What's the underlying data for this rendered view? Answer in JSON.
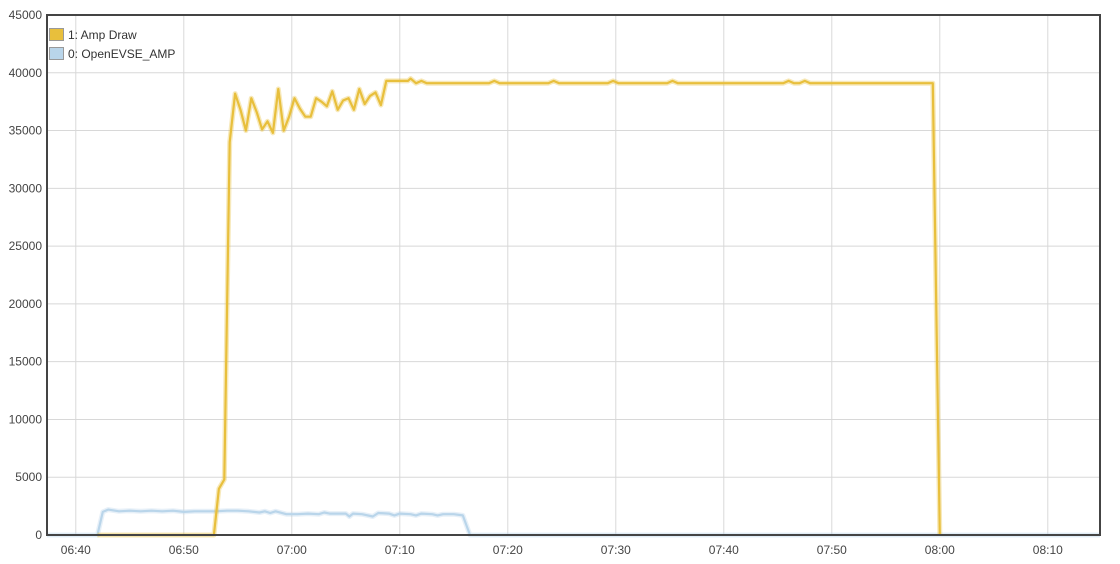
{
  "chart_data": {
    "type": "line",
    "title": "",
    "xlabel": "",
    "ylabel": "",
    "xlim": [
      "06:37:20",
      "08:14:50"
    ],
    "ylim": [
      0,
      45000
    ],
    "grid": true,
    "legend_position": "top-left",
    "x_ticks": [
      "06:40",
      "06:50",
      "07:00",
      "07:10",
      "07:20",
      "07:30",
      "07:40",
      "07:50",
      "08:00",
      "08:10"
    ],
    "y_ticks": [
      "0",
      "5000",
      "10000",
      "15000",
      "20000",
      "25000",
      "30000",
      "35000",
      "40000",
      "45000"
    ],
    "series": [
      {
        "name": "0: OpenEVSE_AMP",
        "color": "#b9d5ea",
        "points": [
          [
            "06:37:20",
            0
          ],
          [
            "06:42:00",
            0
          ],
          [
            "06:42:30",
            2000
          ],
          [
            "06:43:00",
            2200
          ],
          [
            "06:44:00",
            2050
          ],
          [
            "06:45:00",
            2100
          ],
          [
            "06:46:00",
            2050
          ],
          [
            "06:47:00",
            2100
          ],
          [
            "06:48:00",
            2050
          ],
          [
            "06:49:00",
            2100
          ],
          [
            "06:50:00",
            2000
          ],
          [
            "06:51:00",
            2050
          ],
          [
            "06:52:00",
            2050
          ],
          [
            "06:53:00",
            2050
          ],
          [
            "06:54:00",
            2100
          ],
          [
            "06:55:00",
            2100
          ],
          [
            "06:56:00",
            2050
          ],
          [
            "06:57:00",
            1950
          ],
          [
            "06:57:30",
            2050
          ],
          [
            "06:58:00",
            1900
          ],
          [
            "06:58:30",
            2050
          ],
          [
            "06:59:30",
            1800
          ],
          [
            "07:00:30",
            1800
          ],
          [
            "07:01:30",
            1850
          ],
          [
            "07:02:30",
            1800
          ],
          [
            "07:03:00",
            1950
          ],
          [
            "07:03:30",
            1850
          ],
          [
            "07:04:00",
            1850
          ],
          [
            "07:05:00",
            1850
          ],
          [
            "07:05:20",
            1600
          ],
          [
            "07:05:40",
            1850
          ],
          [
            "07:06:30",
            1800
          ],
          [
            "07:07:30",
            1600
          ],
          [
            "07:08:00",
            1900
          ],
          [
            "07:09:00",
            1850
          ],
          [
            "07:09:30",
            1700
          ],
          [
            "07:10:00",
            1850
          ],
          [
            "07:11:00",
            1800
          ],
          [
            "07:11:30",
            1700
          ],
          [
            "07:12:00",
            1850
          ],
          [
            "07:13:00",
            1800
          ],
          [
            "07:13:30",
            1700
          ],
          [
            "07:14:00",
            1800
          ],
          [
            "07:15:00",
            1800
          ],
          [
            "07:15:50",
            1700
          ],
          [
            "07:16:30",
            0
          ],
          [
            "08:14:50",
            0
          ]
        ]
      },
      {
        "name": "1: Amp Draw",
        "color": "#e8bf3c",
        "points": [
          [
            "06:42:00",
            0
          ],
          [
            "06:52:47",
            0
          ],
          [
            "06:53:15",
            4000
          ],
          [
            "06:53:45",
            4800
          ],
          [
            "06:54:15",
            34000
          ],
          [
            "06:54:45",
            38200
          ],
          [
            "06:55:15",
            36800
          ],
          [
            "06:55:45",
            35000
          ],
          [
            "06:56:15",
            37800
          ],
          [
            "06:56:45",
            36600
          ],
          [
            "06:57:15",
            35100
          ],
          [
            "06:57:45",
            35800
          ],
          [
            "06:58:15",
            34800
          ],
          [
            "06:58:45",
            38600
          ],
          [
            "06:59:15",
            35000
          ],
          [
            "06:59:45",
            36200
          ],
          [
            "07:00:15",
            37800
          ],
          [
            "07:00:45",
            36900
          ],
          [
            "07:01:15",
            36200
          ],
          [
            "07:01:45",
            36200
          ],
          [
            "07:02:15",
            37800
          ],
          [
            "07:02:45",
            37500
          ],
          [
            "07:03:15",
            37100
          ],
          [
            "07:03:45",
            38400
          ],
          [
            "07:04:15",
            36800
          ],
          [
            "07:04:45",
            37600
          ],
          [
            "07:05:15",
            37800
          ],
          [
            "07:05:45",
            36800
          ],
          [
            "07:06:15",
            38600
          ],
          [
            "07:06:45",
            37300
          ],
          [
            "07:07:15",
            38000
          ],
          [
            "07:07:45",
            38300
          ],
          [
            "07:08:15",
            37200
          ],
          [
            "07:08:45",
            39300
          ],
          [
            "07:10:45",
            39300
          ],
          [
            "07:11:00",
            39500
          ],
          [
            "07:11:30",
            39100
          ],
          [
            "07:12:00",
            39300
          ],
          [
            "07:12:30",
            39100
          ],
          [
            "07:18:15",
            39100
          ],
          [
            "07:18:45",
            39300
          ],
          [
            "07:19:15",
            39100
          ],
          [
            "07:23:45",
            39100
          ],
          [
            "07:24:15",
            39300
          ],
          [
            "07:24:45",
            39100
          ],
          [
            "07:29:15",
            39100
          ],
          [
            "07:29:45",
            39300
          ],
          [
            "07:30:15",
            39100
          ],
          [
            "07:34:45",
            39100
          ],
          [
            "07:35:15",
            39300
          ],
          [
            "07:35:45",
            39100
          ],
          [
            "07:45:30",
            39100
          ],
          [
            "07:46:00",
            39300
          ],
          [
            "07:46:30",
            39100
          ],
          [
            "07:47:00",
            39100
          ],
          [
            "07:47:30",
            39300
          ],
          [
            "07:48:00",
            39100
          ],
          [
            "07:59:21",
            39100
          ],
          [
            "08:00:00",
            0
          ]
        ]
      }
    ]
  }
}
